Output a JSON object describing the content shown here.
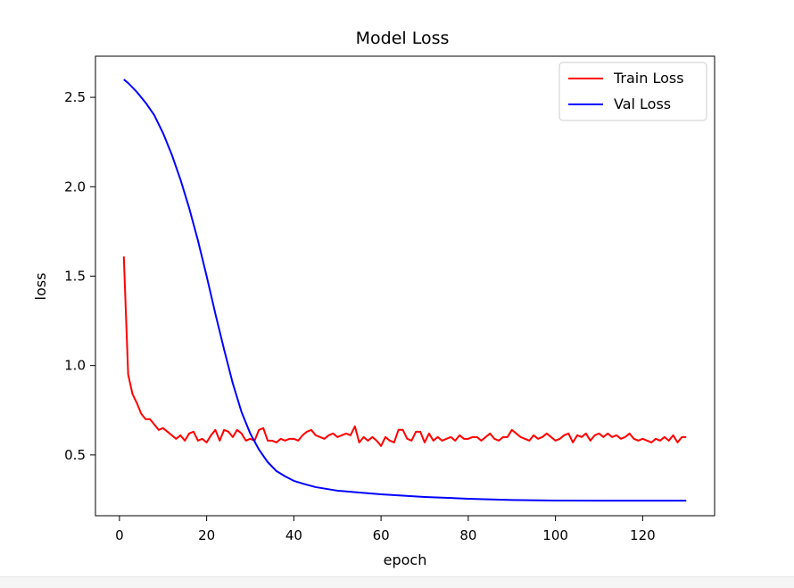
{
  "chart_data": {
    "type": "line",
    "title": "Model Loss",
    "xlabel": "epoch",
    "ylabel": "loss",
    "xlim": [
      -5.5,
      136.5
    ],
    "ylim": [
      0.16,
      2.73
    ],
    "xticks": [
      0,
      20,
      40,
      60,
      80,
      100,
      120
    ],
    "yticks": [
      0.5,
      1.0,
      1.5,
      2.0,
      2.5
    ],
    "xtick_labels": [
      "0",
      "20",
      "40",
      "60",
      "80",
      "100",
      "120"
    ],
    "ytick_labels": [
      "0.5",
      "1.0",
      "1.5",
      "2.0",
      "2.5"
    ],
    "grid": false,
    "legend_position": "top-right",
    "series": [
      {
        "name": "Train Loss",
        "color": "#ff0000",
        "x": [
          1,
          2,
          3,
          4,
          5,
          6,
          7,
          8,
          9,
          10,
          11,
          12,
          13,
          14,
          15,
          16,
          17,
          18,
          19,
          20,
          21,
          22,
          23,
          24,
          25,
          26,
          27,
          28,
          29,
          30,
          31,
          32,
          33,
          34,
          35,
          36,
          37,
          38,
          39,
          40,
          41,
          42,
          43,
          44,
          45,
          46,
          47,
          48,
          49,
          50,
          51,
          52,
          53,
          54,
          55,
          56,
          57,
          58,
          59,
          60,
          61,
          62,
          63,
          64,
          65,
          66,
          67,
          68,
          69,
          70,
          71,
          72,
          73,
          74,
          75,
          76,
          77,
          78,
          79,
          80,
          81,
          82,
          83,
          84,
          85,
          86,
          87,
          88,
          89,
          90,
          91,
          92,
          93,
          94,
          95,
          96,
          97,
          98,
          99,
          100,
          101,
          102,
          103,
          104,
          105,
          106,
          107,
          108,
          109,
          110,
          111,
          112,
          113,
          114,
          115,
          116,
          117,
          118,
          119,
          120,
          121,
          122,
          123,
          124,
          125,
          126,
          127,
          128,
          129,
          130
        ],
        "values": [
          1.61,
          0.95,
          0.84,
          0.79,
          0.73,
          0.7,
          0.7,
          0.67,
          0.64,
          0.65,
          0.63,
          0.61,
          0.59,
          0.61,
          0.58,
          0.62,
          0.63,
          0.58,
          0.59,
          0.57,
          0.61,
          0.64,
          0.58,
          0.64,
          0.63,
          0.6,
          0.64,
          0.62,
          0.58,
          0.59,
          0.58,
          0.64,
          0.65,
          0.58,
          0.58,
          0.57,
          0.59,
          0.58,
          0.59,
          0.59,
          0.58,
          0.61,
          0.63,
          0.64,
          0.61,
          0.6,
          0.59,
          0.61,
          0.62,
          0.6,
          0.61,
          0.62,
          0.61,
          0.66,
          0.57,
          0.6,
          0.58,
          0.6,
          0.58,
          0.55,
          0.6,
          0.58,
          0.57,
          0.64,
          0.64,
          0.59,
          0.58,
          0.63,
          0.63,
          0.57,
          0.62,
          0.58,
          0.6,
          0.58,
          0.59,
          0.6,
          0.58,
          0.61,
          0.59,
          0.59,
          0.6,
          0.6,
          0.58,
          0.6,
          0.62,
          0.59,
          0.58,
          0.6,
          0.6,
          0.64,
          0.62,
          0.6,
          0.59,
          0.58,
          0.61,
          0.59,
          0.6,
          0.62,
          0.6,
          0.58,
          0.59,
          0.61,
          0.62,
          0.57,
          0.61,
          0.6,
          0.62,
          0.58,
          0.61,
          0.62,
          0.6,
          0.62,
          0.6,
          0.61,
          0.59,
          0.6,
          0.62,
          0.59,
          0.58,
          0.59,
          0.58,
          0.57,
          0.59,
          0.58,
          0.6,
          0.58,
          0.61,
          0.57,
          0.6,
          0.6
        ]
      },
      {
        "name": "Val Loss",
        "color": "#0000ff",
        "x": [
          1,
          2,
          4,
          6,
          8,
          10,
          12,
          14,
          16,
          18,
          20,
          22,
          24,
          26,
          28,
          30,
          32,
          34,
          36,
          38,
          40,
          42,
          45,
          50,
          55,
          60,
          70,
          80,
          90,
          100,
          110,
          120,
          130
        ],
        "values": [
          2.6,
          2.58,
          2.53,
          2.47,
          2.4,
          2.3,
          2.18,
          2.04,
          1.88,
          1.7,
          1.5,
          1.29,
          1.09,
          0.9,
          0.74,
          0.62,
          0.53,
          0.46,
          0.41,
          0.38,
          0.355,
          0.34,
          0.32,
          0.3,
          0.29,
          0.28,
          0.265,
          0.255,
          0.248,
          0.245,
          0.244,
          0.244,
          0.244
        ]
      }
    ]
  }
}
